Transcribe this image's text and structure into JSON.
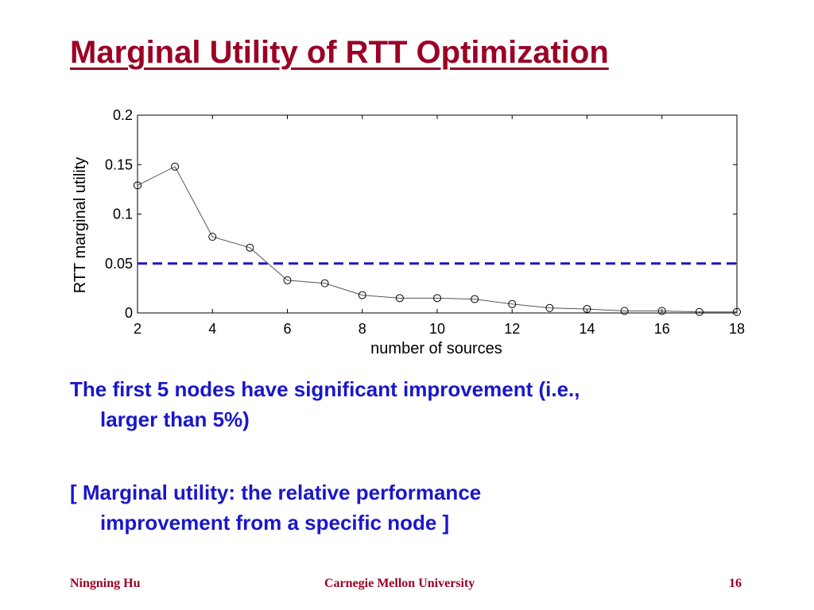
{
  "slide": {
    "title": "Marginal Utility of RTT Optimization",
    "bullets": [
      {
        "line1": "The first 5 nodes have significant improvement (i.e.,",
        "line2": "larger than 5%)"
      },
      {
        "line1": "[ Marginal utility: the relative performance",
        "line2": "improvement from a specific node ]"
      }
    ],
    "footer": {
      "left": "Ningning Hu",
      "center": "Carnegie Mellon University",
      "right": "16"
    }
  },
  "colors": {
    "title": "#9b0025",
    "body_text": "#1a17c8",
    "threshold_line": "#1a17c8",
    "series_line": "#555555"
  },
  "chart_data": {
    "type": "line",
    "xlabel": "number of sources",
    "ylabel": "RTT marginal utility",
    "xlim": [
      2,
      18
    ],
    "ylim": [
      0,
      0.2
    ],
    "xticks": [
      2,
      4,
      6,
      8,
      10,
      12,
      14,
      16,
      18
    ],
    "yticks": [
      0,
      0.05,
      0.1,
      0.15,
      0.2
    ],
    "ytick_labels": [
      "0",
      "0.05",
      "0.1",
      "0.15",
      "0.2"
    ],
    "grid": false,
    "marker": "circle",
    "series": [
      {
        "x": [
          2,
          3,
          4,
          5,
          6,
          7,
          8,
          9,
          10,
          11,
          12,
          13,
          14,
          15,
          16,
          17,
          18
        ],
        "values": [
          0.129,
          0.148,
          0.077,
          0.066,
          0.033,
          0.03,
          0.018,
          0.015,
          0.015,
          0.014,
          0.009,
          0.005,
          0.004,
          0.002,
          0.002,
          0.001,
          0.001
        ]
      }
    ],
    "threshold": {
      "y": 0.05,
      "style": "dashed"
    }
  }
}
